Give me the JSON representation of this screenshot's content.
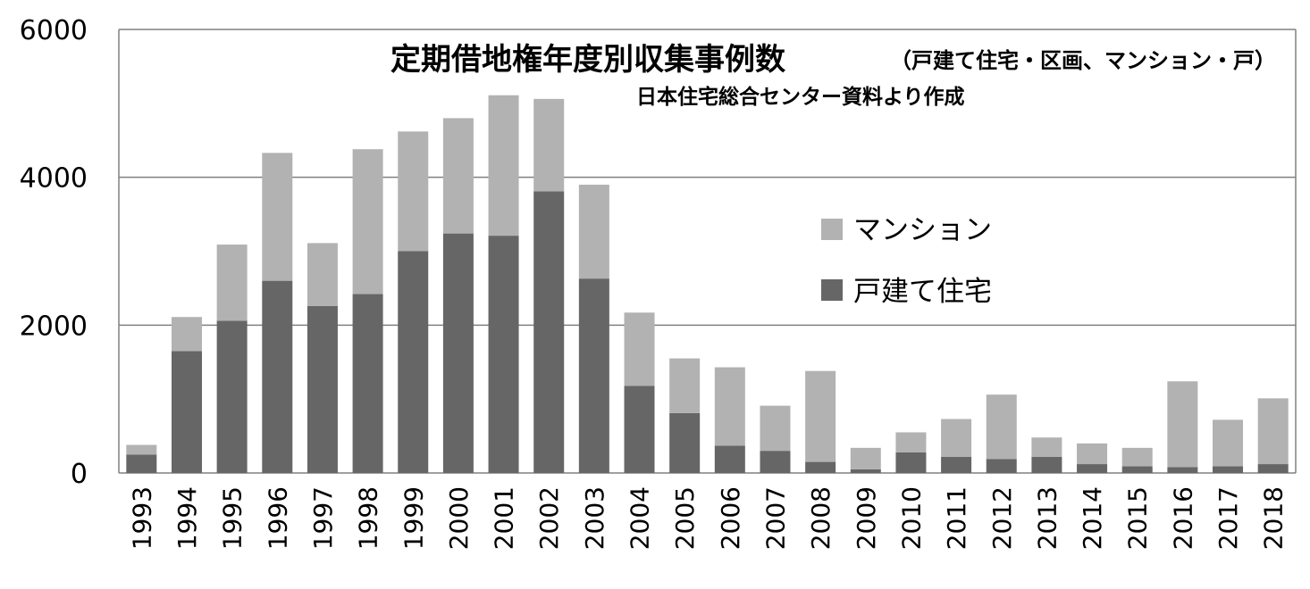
{
  "chart_data": {
    "type": "bar",
    "stacked": true,
    "title": "定期借地権年度別収集事例数",
    "subtitle": "（戸建て住宅・区画、マンション・戸）",
    "source_note": "日本住宅総合センター資料より作成",
    "categories": [
      "1993",
      "1994",
      "1995",
      "1996",
      "1997",
      "1998",
      "1999",
      "2000",
      "2001",
      "2002",
      "2003",
      "2004",
      "2005",
      "2006",
      "2007",
      "2008",
      "2009",
      "2010",
      "2011",
      "2012",
      "2013",
      "2014",
      "2015",
      "2016",
      "2017",
      "2018"
    ],
    "series": [
      {
        "name": "戸建て住宅",
        "color": "#666666",
        "values": [
          250,
          1650,
          2060,
          2600,
          2260,
          2420,
          3000,
          3240,
          3210,
          3810,
          2630,
          1180,
          810,
          370,
          300,
          150,
          50,
          280,
          220,
          190,
          220,
          120,
          90,
          80,
          90,
          120
        ]
      },
      {
        "name": "マンション",
        "color": "#b2b2b2",
        "values": [
          130,
          460,
          1030,
          1730,
          850,
          1960,
          1620,
          1560,
          1900,
          1250,
          1270,
          990,
          740,
          1060,
          610,
          1230,
          290,
          270,
          510,
          870,
          260,
          280,
          250,
          1160,
          630,
          890
        ]
      }
    ],
    "yticks": [
      "0",
      "2000",
      "4000",
      "6000"
    ],
    "ylim": [
      0,
      6000
    ],
    "grid": true,
    "legend_position": "center-right",
    "xlabel": "",
    "ylabel": ""
  }
}
